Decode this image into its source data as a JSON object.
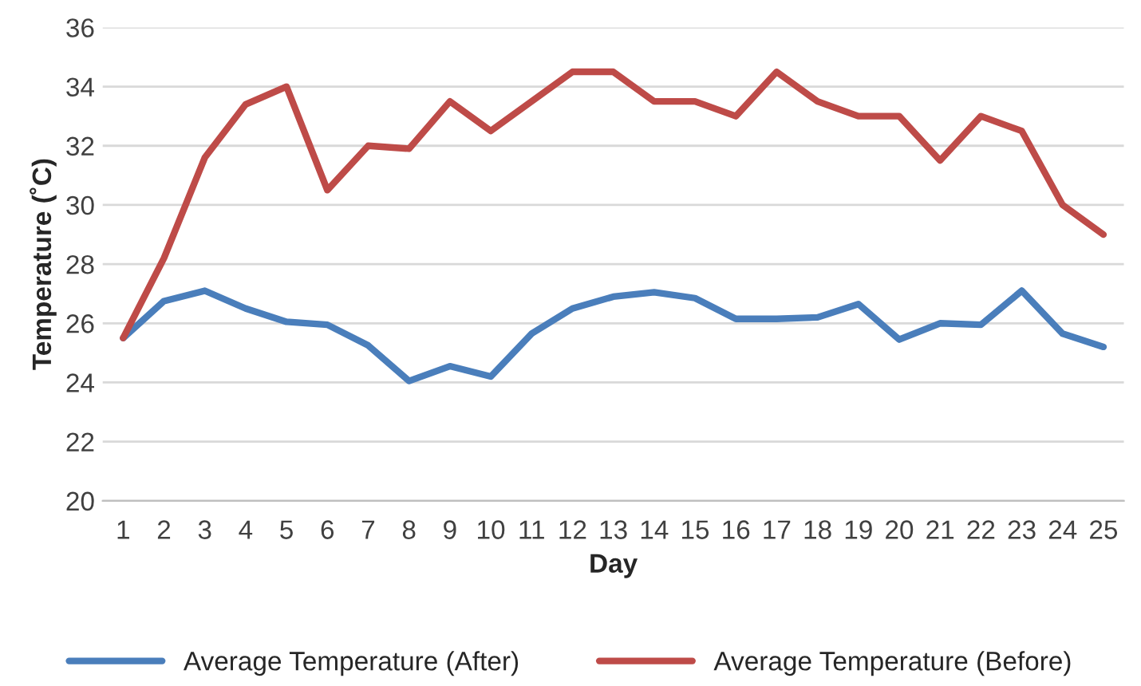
{
  "chart_data": {
    "type": "line",
    "xlabel": "Day",
    "ylabel": "Temperature (˚C)",
    "categories": [
      "1",
      "2",
      "3",
      "4",
      "5",
      "6",
      "7",
      "8",
      "9",
      "10",
      "11",
      "12",
      "13",
      "14",
      "15",
      "16",
      "17",
      "18",
      "19",
      "20",
      "21",
      "22",
      "23",
      "24",
      "25"
    ],
    "series": [
      {
        "name": "Average Temperature (After)",
        "color": "#4a7ebb",
        "values": [
          25.5,
          26.75,
          27.1,
          26.5,
          26.05,
          25.95,
          25.25,
          24.05,
          24.55,
          24.2,
          25.65,
          26.5,
          26.9,
          27.05,
          26.85,
          26.15,
          26.15,
          26.2,
          26.65,
          25.45,
          26.0,
          25.95,
          27.1,
          25.65,
          25.2
        ]
      },
      {
        "name": "Average Temperature (Before)",
        "color": "#be4b48",
        "values": [
          25.5,
          28.2,
          31.6,
          33.4,
          34.0,
          30.5,
          32.0,
          31.9,
          33.5,
          32.5,
          33.5,
          34.5,
          34.5,
          33.5,
          33.5,
          33.0,
          34.5,
          33.5,
          33.0,
          33.0,
          31.5,
          33.0,
          32.5,
          30.0,
          29.0
        ]
      }
    ],
    "ylim": [
      20,
      36
    ],
    "yticks": [
      20,
      22,
      24,
      26,
      28,
      30,
      32,
      34,
      36
    ],
    "grid": "y",
    "legend": "bottom",
    "marker": "none",
    "line_style": "solid"
  }
}
